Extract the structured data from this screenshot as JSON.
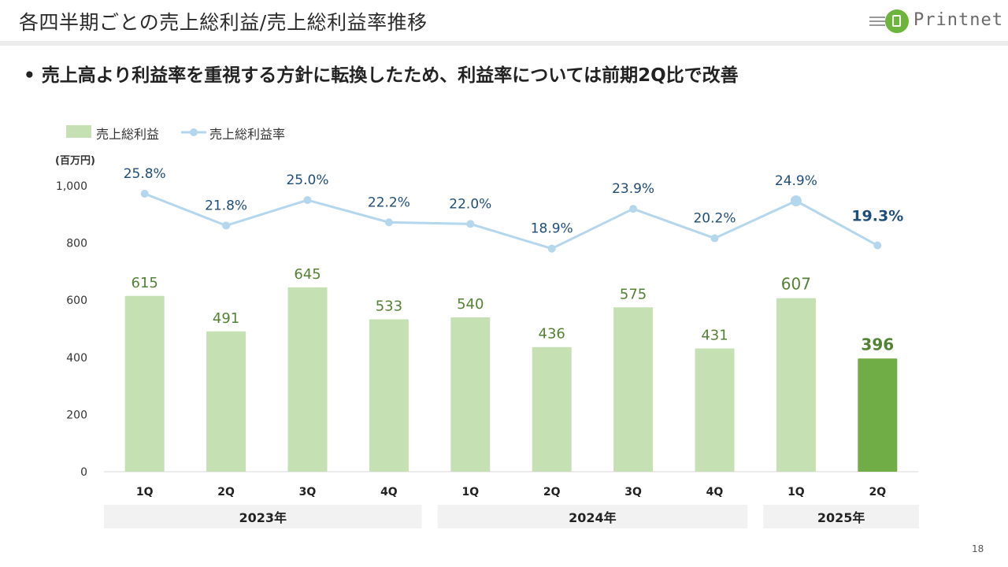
{
  "header": {
    "title": "各四半期ごとの売上総利益/売上総利益率推移",
    "logo_text": "Printnet",
    "accent_color": "#6db53a"
  },
  "headline": {
    "bullet": "•",
    "text": "売上高より利益率を重視する方針に転換したため、利益率については前期2Q比で改善"
  },
  "legend": {
    "bar_label": "売上総利益",
    "line_label": "売上総利益率"
  },
  "page_number": "18",
  "chart_data": {
    "type": "bar+line",
    "unit_label": "(百万円)",
    "categories": [
      "1Q",
      "2Q",
      "3Q",
      "4Q",
      "1Q",
      "2Q",
      "3Q",
      "4Q",
      "1Q",
      "2Q"
    ],
    "year_groups": [
      {
        "label": "2023年",
        "count": 4
      },
      {
        "label": "2024年",
        "count": 4
      },
      {
        "label": "2025年",
        "count": 2
      }
    ],
    "series": [
      {
        "name": "売上総利益",
        "type": "bar",
        "values": [
          615,
          491,
          645,
          533,
          540,
          436,
          575,
          431,
          607,
          396
        ],
        "labels": [
          "615",
          "491",
          "645",
          "533",
          "540",
          "436",
          "575",
          "431",
          "607",
          "396"
        ],
        "color": "#c5e0b3",
        "highlight_color": "#70ad47",
        "highlight_index": 9,
        "label_color": "#548235"
      },
      {
        "name": "売上総利益率",
        "type": "line",
        "values": [
          25.8,
          21.8,
          25.0,
          22.2,
          22.0,
          18.9,
          23.9,
          20.2,
          24.9,
          19.3
        ],
        "labels": [
          "25.8%",
          "21.8%",
          "25.0%",
          "22.2%",
          "22.0%",
          "18.9%",
          "23.9%",
          "20.2%",
          "24.9%",
          "19.3%"
        ],
        "color": "#b4d7ee",
        "label_color": "#1f4e79",
        "highlight_index": 9
      }
    ],
    "y_axis": {
      "ylim": [
        0,
        1000
      ],
      "ticks": [
        0,
        200,
        400,
        600,
        800,
        1000
      ],
      "tick_labels": [
        "0",
        "200",
        "400",
        "600",
        "800",
        "1,000"
      ]
    },
    "grid": false
  }
}
